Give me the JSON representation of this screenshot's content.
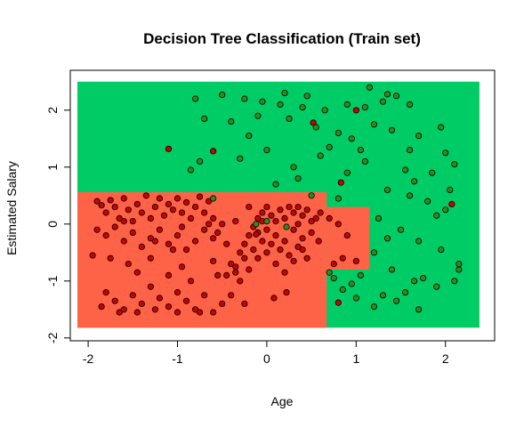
{
  "chart_data": {
    "type": "scatter",
    "title": "Decision Tree Classification (Train set)",
    "xlabel": "Age",
    "ylabel": "Estimated Salary",
    "xlim": [
      -2.2,
      2.55
    ],
    "ylim": [
      -2.05,
      2.7
    ],
    "x_ticks": [
      -2,
      -1,
      0,
      1,
      2
    ],
    "y_ticks": [
      -2,
      -1,
      0,
      1,
      2
    ],
    "x_tick_labels": [
      "-2",
      "-1",
      "0",
      "1",
      "2"
    ],
    "y_tick_labels": [
      "-2",
      "-1",
      "0",
      "1",
      "2"
    ],
    "grid": false,
    "colors": {
      "region_0": "#ff6347",
      "region_1": "#00cc66",
      "point_0": "#cc0000",
      "point_1": "#2e8b22",
      "point_edge": "#000000"
    },
    "regions": [
      {
        "class": 1,
        "x": [
          -2.12,
          2.38
        ],
        "y": [
          -1.82,
          2.5
        ]
      },
      {
        "class": 0,
        "x": [
          -2.12,
          0.67
        ],
        "y": [
          -1.82,
          0.56
        ]
      },
      {
        "class": 0,
        "x": [
          0.67,
          1.15
        ],
        "y": [
          -0.8,
          0.3
        ]
      }
    ],
    "series": [
      {
        "class": 0,
        "points": [
          [
            -1.9,
            0.4
          ],
          [
            -1.85,
            0.33
          ],
          [
            -1.8,
            0.2
          ],
          [
            -1.75,
            0.42
          ],
          [
            -1.7,
            0.3
          ],
          [
            -1.65,
            0.1
          ],
          [
            -1.6,
            0.45
          ],
          [
            -1.55,
            0.25
          ],
          [
            -1.5,
            0.05
          ],
          [
            -1.45,
            0.35
          ],
          [
            -1.4,
            0.2
          ],
          [
            -1.35,
            0.5
          ],
          [
            -1.3,
            0.1
          ],
          [
            -1.25,
            0.3
          ],
          [
            -1.2,
            0.45
          ],
          [
            -1.15,
            0.15
          ],
          [
            -1.1,
            0.35
          ],
          [
            -1.05,
            0.25
          ],
          [
            -1.0,
            0.45
          ],
          [
            -0.95,
            0.2
          ],
          [
            -0.9,
            0.38
          ],
          [
            -0.85,
            0.1
          ],
          [
            -0.8,
            0.3
          ],
          [
            -0.75,
            0.48
          ],
          [
            -0.7,
            0.2
          ],
          [
            -0.65,
            0.4
          ],
          [
            -1.9,
            -0.1
          ],
          [
            -1.8,
            -0.2
          ],
          [
            -1.7,
            -0.05
          ],
          [
            -1.6,
            -0.3
          ],
          [
            -1.5,
            -0.15
          ],
          [
            -1.4,
            -0.4
          ],
          [
            -1.3,
            -0.25
          ],
          [
            -1.2,
            -0.1
          ],
          [
            -1.1,
            -0.35
          ],
          [
            -1.0,
            -0.2
          ],
          [
            -0.9,
            -0.45
          ],
          [
            -0.8,
            -0.3
          ],
          [
            -0.7,
            -0.1
          ],
          [
            -0.6,
            -0.25
          ],
          [
            -1.95,
            -0.55
          ],
          [
            -1.75,
            -0.6
          ],
          [
            -1.55,
            -0.7
          ],
          [
            -1.45,
            -0.85
          ],
          [
            -1.3,
            -0.6
          ],
          [
            -1.1,
            -0.9
          ],
          [
            -0.95,
            -0.75
          ],
          [
            -0.85,
            -1.0
          ],
          [
            -0.6,
            -0.65
          ],
          [
            -0.55,
            -0.9
          ],
          [
            -1.8,
            -1.2
          ],
          [
            -1.7,
            -1.35
          ],
          [
            -1.6,
            -1.5
          ],
          [
            -1.5,
            -1.25
          ],
          [
            -1.4,
            -1.4
          ],
          [
            -1.3,
            -1.1
          ],
          [
            -1.2,
            -1.3
          ],
          [
            -1.1,
            -1.45
          ],
          [
            -1.0,
            -1.2
          ],
          [
            -0.9,
            -1.35
          ],
          [
            -0.8,
            -1.5
          ],
          [
            -0.7,
            -1.25
          ],
          [
            -0.6,
            -1.55
          ],
          [
            -0.5,
            -1.4
          ],
          [
            -1.65,
            -1.55
          ],
          [
            -1.45,
            -1.55
          ],
          [
            -1.25,
            -1.5
          ],
          [
            -1.85,
            -1.45
          ],
          [
            -0.75,
            -1.55
          ],
          [
            -1.0,
            -1.55
          ],
          [
            -0.4,
            -0.7
          ],
          [
            -0.35,
            -0.85
          ],
          [
            -0.3,
            -0.5
          ],
          [
            -0.25,
            -0.35
          ],
          [
            -0.2,
            -0.2
          ],
          [
            -0.15,
            -0.05
          ],
          [
            -0.1,
            0.1
          ],
          [
            -0.05,
            0.2
          ],
          [
            0.0,
            0.3
          ],
          [
            0.05,
            0.15
          ],
          [
            0.1,
            0.05
          ],
          [
            0.15,
            0.25
          ],
          [
            0.2,
            0.1
          ],
          [
            0.25,
            0.3
          ],
          [
            0.3,
            0.2
          ],
          [
            0.35,
            0.0
          ],
          [
            0.4,
            0.15
          ],
          [
            0.45,
            0.25
          ],
          [
            0.5,
            0.05
          ],
          [
            -0.2,
            0.3
          ],
          [
            -0.1,
            -0.15
          ],
          [
            0.0,
            -0.1
          ],
          [
            0.1,
            -0.2
          ],
          [
            0.2,
            -0.3
          ],
          [
            0.3,
            -0.1
          ],
          [
            0.4,
            -0.25
          ],
          [
            0.5,
            -0.15
          ],
          [
            0.05,
            -0.35
          ],
          [
            0.15,
            -0.45
          ],
          [
            0.25,
            -0.55
          ],
          [
            0.35,
            -0.4
          ],
          [
            0.45,
            -0.6
          ],
          [
            -0.05,
            -0.3
          ],
          [
            -0.15,
            -0.45
          ],
          [
            -0.25,
            -0.6
          ],
          [
            -0.35,
            -0.75
          ],
          [
            -0.45,
            -0.9
          ],
          [
            -0.3,
            -1.0
          ],
          [
            -0.2,
            -0.8
          ],
          [
            -0.1,
            -0.6
          ],
          [
            0.0,
            -0.5
          ],
          [
            0.1,
            -0.7
          ],
          [
            0.2,
            -0.85
          ],
          [
            0.3,
            -0.65
          ],
          [
            0.4,
            -0.45
          ],
          [
            -0.45,
            -0.35
          ],
          [
            -0.55,
            -0.15
          ],
          [
            -0.5,
            0.0
          ],
          [
            -0.6,
            0.1
          ],
          [
            -0.35,
            0.05
          ],
          [
            0.55,
            0.1
          ],
          [
            0.6,
            0.2
          ],
          [
            0.58,
            -0.3
          ],
          [
            0.7,
            0.1
          ],
          [
            0.8,
            0.0
          ],
          [
            0.9,
            -0.2
          ],
          [
            0.85,
            -0.6
          ],
          [
            1.0,
            -0.65
          ],
          [
            0.75,
            -0.7
          ],
          [
            -0.65,
            0.0
          ],
          [
            -0.4,
            -1.25
          ],
          [
            -0.25,
            -1.4
          ],
          [
            0.08,
            -1.3
          ],
          [
            0.22,
            -1.2
          ],
          [
            -1.05,
            -0.45
          ],
          [
            -0.95,
            -0.05
          ],
          [
            -1.25,
            -0.3
          ],
          [
            -1.6,
            0.05
          ],
          [
            -0.05,
            0.05
          ],
          [
            0.35,
            0.3
          ],
          [
            0.8,
            -1.38
          ],
          [
            0.52,
            1.78
          ],
          [
            -1.1,
            1.32
          ],
          [
            1.0,
            2.0
          ],
          [
            -0.6,
            1.28
          ],
          [
            2.07,
            0.35
          ],
          [
            0.83,
            0.73
          ],
          [
            -0.12,
            -0.18
          ]
        ]
      },
      {
        "class": 1,
        "points": [
          [
            -0.8,
            2.2
          ],
          [
            -0.5,
            2.27
          ],
          [
            -0.25,
            2.2
          ],
          [
            -0.05,
            2.15
          ],
          [
            0.15,
            2.1
          ],
          [
            0.4,
            2.05
          ],
          [
            0.65,
            2.0
          ],
          [
            0.9,
            2.1
          ],
          [
            1.1,
            2.05
          ],
          [
            1.3,
            2.15
          ],
          [
            1.45,
            2.25
          ],
          [
            1.6,
            2.1
          ],
          [
            -0.7,
            1.85
          ],
          [
            -0.4,
            1.8
          ],
          [
            -0.1,
            1.9
          ],
          [
            0.25,
            1.85
          ],
          [
            0.55,
            1.7
          ],
          [
            0.8,
            1.6
          ],
          [
            1.2,
            1.75
          ],
          [
            1.4,
            1.65
          ],
          [
            1.7,
            1.55
          ],
          [
            1.95,
            1.7
          ],
          [
            -0.75,
            1.1
          ],
          [
            -0.3,
            1.15
          ],
          [
            0.0,
            1.3
          ],
          [
            0.3,
            1.0
          ],
          [
            0.6,
            1.2
          ],
          [
            0.9,
            0.9
          ],
          [
            1.1,
            1.1
          ],
          [
            1.55,
            0.95
          ],
          [
            1.85,
            0.9
          ],
          [
            2.1,
            1.05
          ],
          [
            1.35,
            0.6
          ],
          [
            1.6,
            0.5
          ],
          [
            1.8,
            0.4
          ],
          [
            2.0,
            0.25
          ],
          [
            1.25,
            0.1
          ],
          [
            1.5,
            -0.1
          ],
          [
            1.7,
            -0.3
          ],
          [
            1.95,
            -0.45
          ],
          [
            2.15,
            -0.7
          ],
          [
            1.2,
            -0.5
          ],
          [
            1.4,
            -0.8
          ],
          [
            1.65,
            -1.0
          ],
          [
            1.9,
            -1.1
          ],
          [
            2.1,
            -1.0
          ],
          [
            0.75,
            -0.95
          ],
          [
            0.85,
            -1.15
          ],
          [
            1.0,
            -1.3
          ],
          [
            1.2,
            -1.45
          ],
          [
            1.45,
            -1.35
          ],
          [
            1.7,
            -1.5
          ],
          [
            1.3,
            -1.25
          ],
          [
            1.55,
            -1.2
          ],
          [
            1.75,
            -0.95
          ],
          [
            1.05,
            -0.9
          ],
          [
            0.95,
            -1.05
          ],
          [
            0.7,
            -0.85
          ],
          [
            1.35,
            -0.25
          ],
          [
            0.8,
            0.45
          ],
          [
            -0.85,
            0.95
          ],
          [
            0.1,
            0.7
          ],
          [
            0.5,
            0.5
          ],
          [
            -0.6,
            0.45
          ],
          [
            1.9,
            0.15
          ],
          [
            2.05,
            0.6
          ],
          [
            1.6,
            1.3
          ],
          [
            2.0,
            1.25
          ],
          [
            0.45,
            2.25
          ],
          [
            1.15,
            2.4
          ],
          [
            1.35,
            2.28
          ],
          [
            0.2,
            2.3
          ],
          [
            -0.2,
            1.55
          ],
          [
            0.35,
            0.8
          ],
          [
            1.65,
            0.75
          ],
          [
            2.15,
            -0.8
          ],
          [
            1.05,
            1.3
          ],
          [
            0.7,
            1.35
          ],
          [
            0.95,
            1.5
          ],
          [
            -0.12,
            0.0
          ],
          [
            0.0,
            0.05
          ],
          [
            0.22,
            -0.05
          ]
        ]
      }
    ]
  }
}
